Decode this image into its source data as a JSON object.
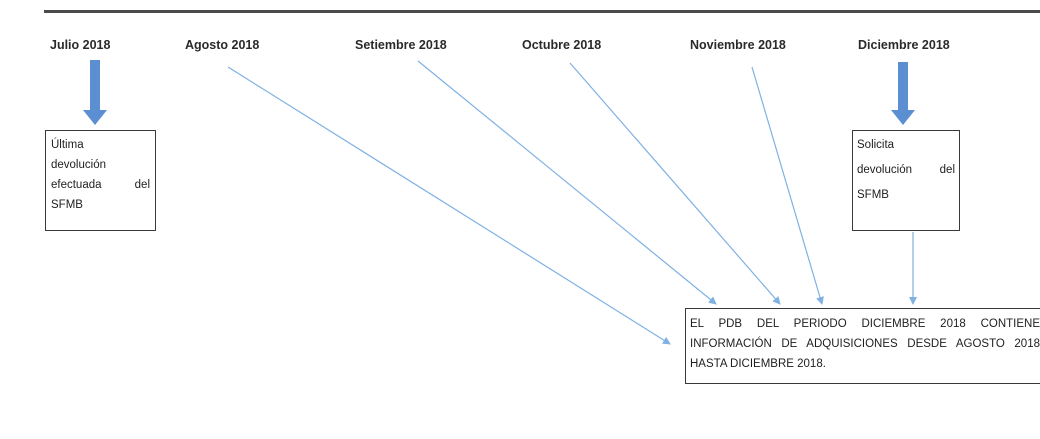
{
  "months": [
    "Julio 2018",
    "Agosto 2018",
    "Setiembre 2018",
    "Octubre 2018",
    "Noviembre 2018",
    "Diciembre 2018"
  ],
  "left_box": {
    "lines": [
      "Última",
      "devolución",
      "efectuada del",
      "SFMB"
    ]
  },
  "right_box": {
    "lines": [
      "Solicita",
      "devolución del",
      "SFMB"
    ]
  },
  "bottom_box": {
    "text": "EL PDB DEL PERIODO DICIEMBRE 2018 CONTIENE INFORMACIÓN DE ADQUISICIONES DESDE AGOSTO 2018 HASTA DICIEMBRE 2018."
  },
  "colors": {
    "arrow_fill": "#5b8fd1",
    "connector": "#7fb1e3",
    "box_border": "#3a3a3a",
    "rule": "#4a4a4a"
  }
}
